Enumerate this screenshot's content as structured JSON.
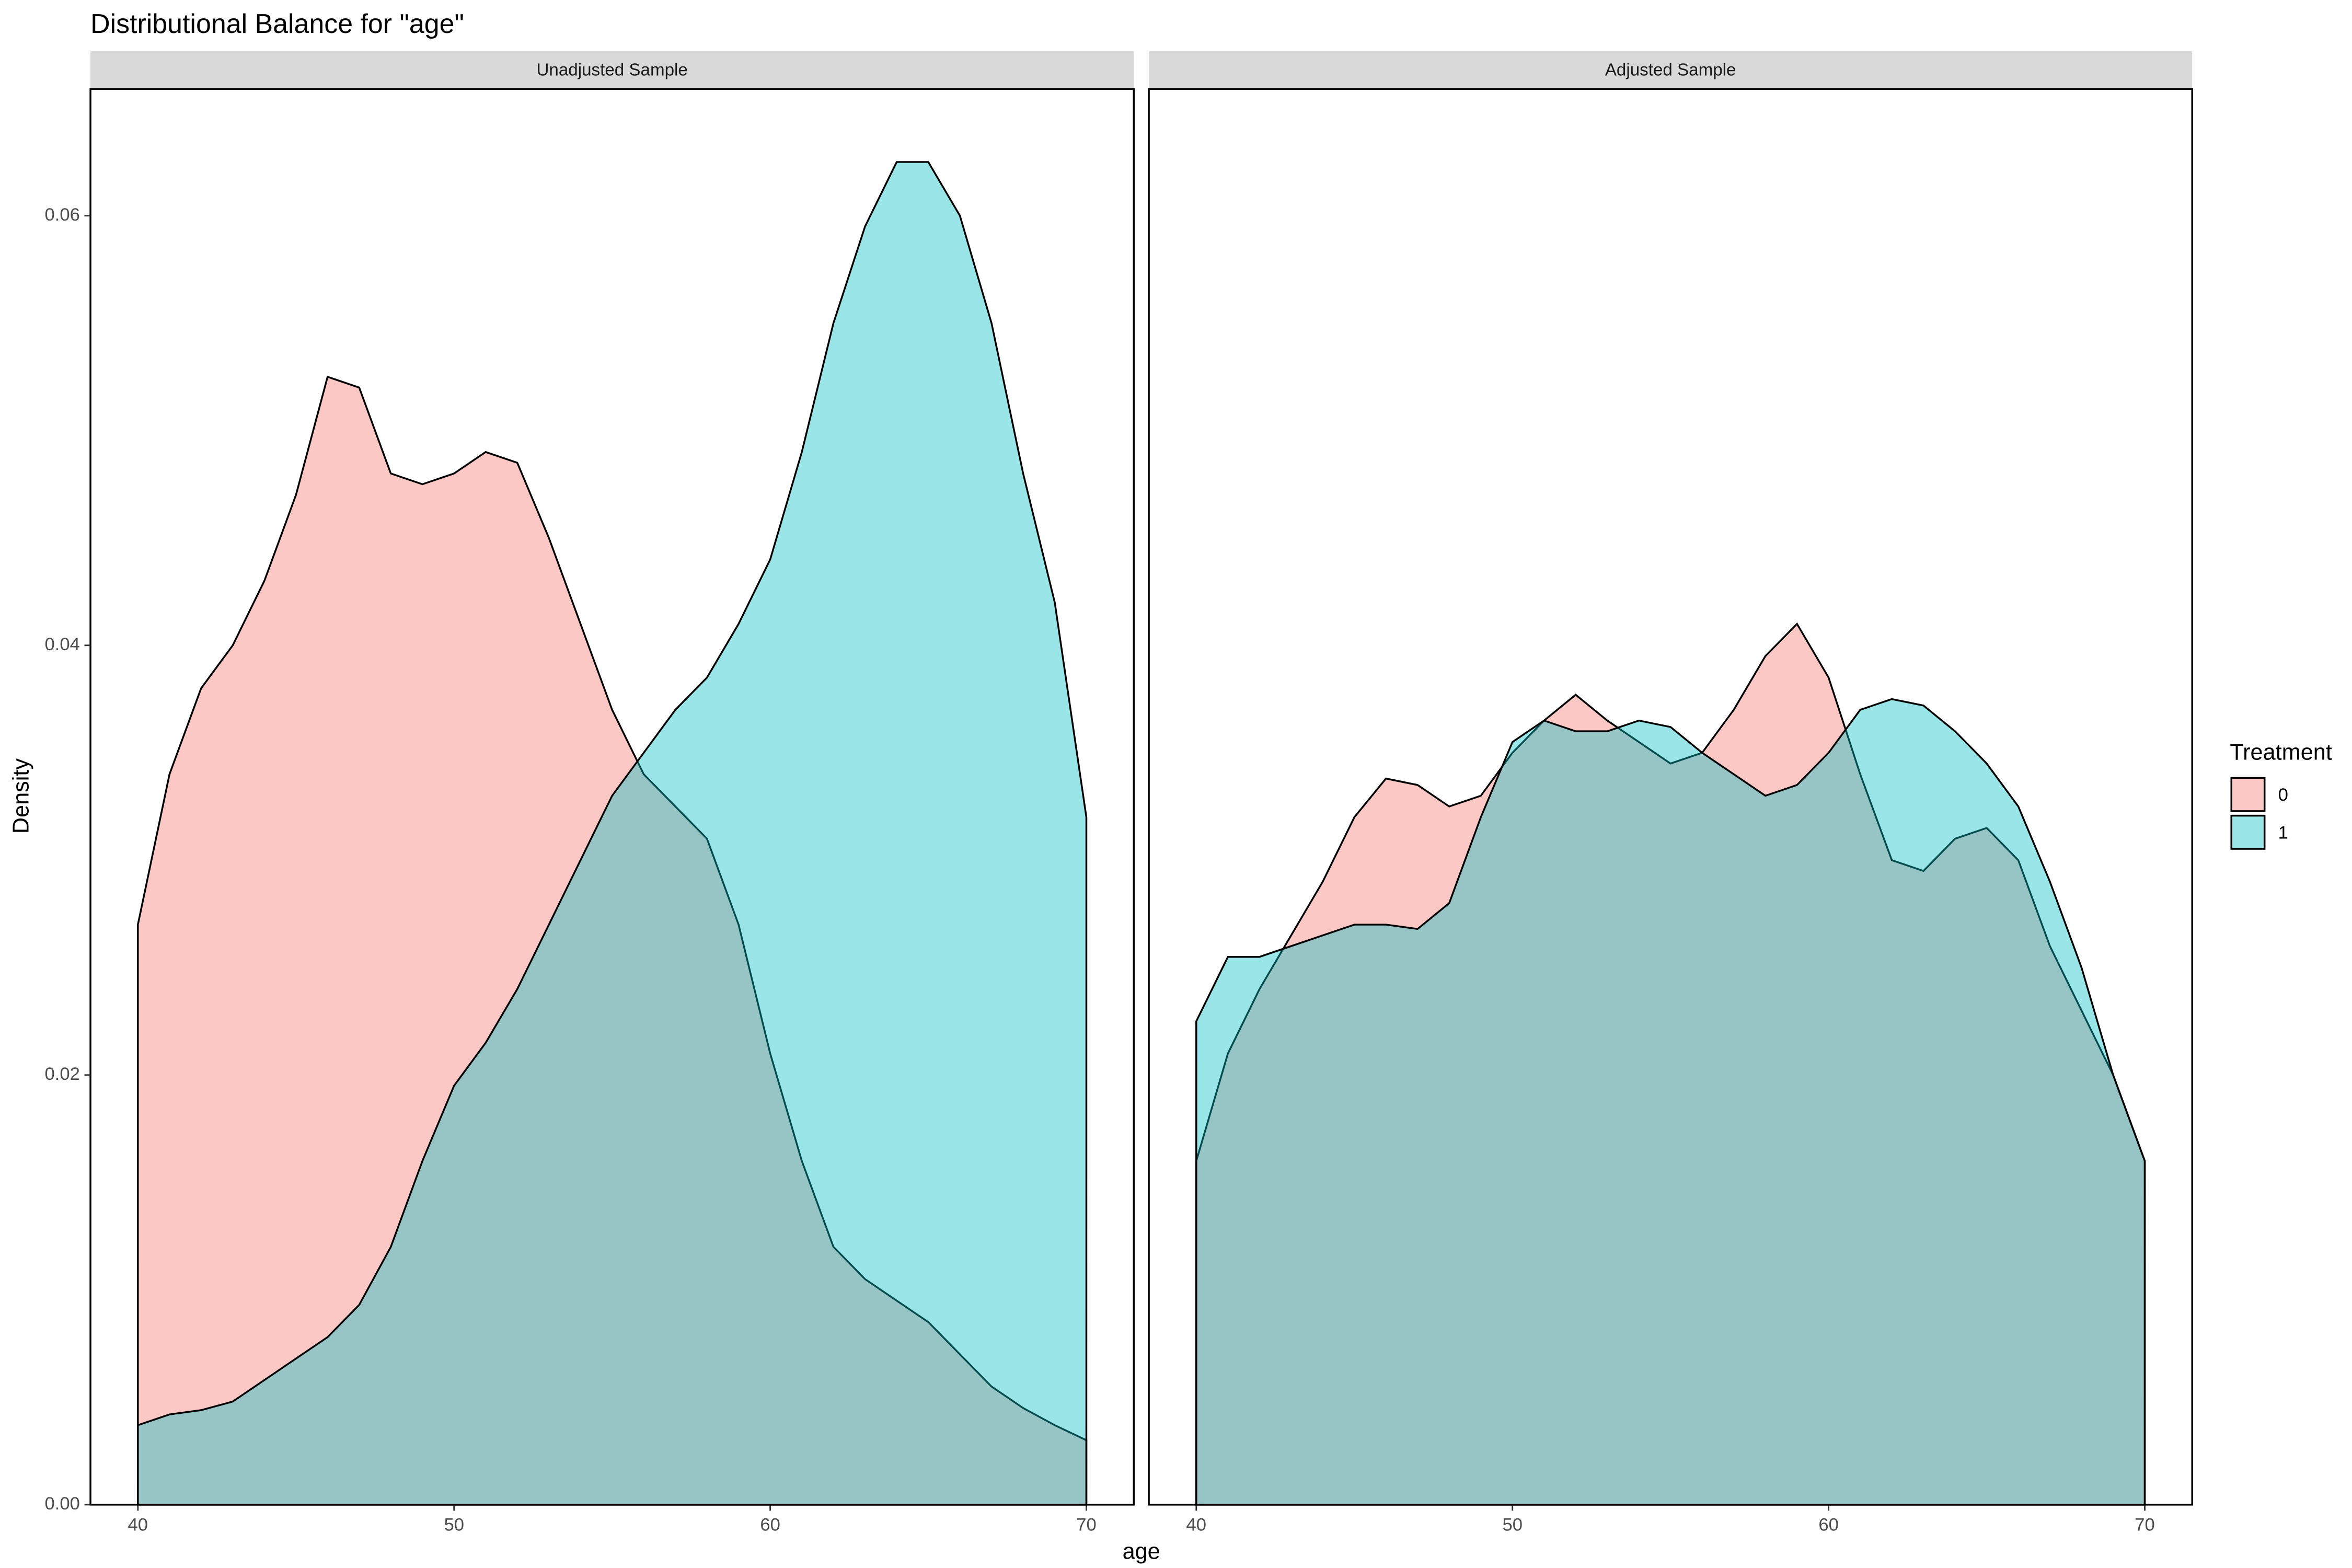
{
  "chart_data": {
    "type": "area",
    "title": "Distributional Balance for \"age\"",
    "x_label": "age",
    "y_label": "Density",
    "legend_title": "Treatment",
    "xlim": [
      38.5,
      71.5
    ],
    "ylim": [
      0,
      0.0659
    ],
    "xticks": [
      40,
      50,
      60,
      70
    ],
    "yticks": [
      {
        "value": 0,
        "label": "0.00"
      },
      0.02,
      0.04,
      0.06
    ],
    "x": [
      40,
      41,
      42,
      43,
      44,
      45,
      46,
      47,
      48,
      49,
      50,
      51,
      52,
      53,
      54,
      55,
      56,
      57,
      58,
      59,
      60,
      61,
      62,
      63,
      64,
      65,
      66,
      67,
      68,
      69,
      70
    ],
    "panels": [
      {
        "title": "Unadjusted Sample",
        "series": [
          {
            "name": "0",
            "color": "#F8766D",
            "values": [
              0.027,
              0.034,
              0.038,
              0.04,
              0.043,
              0.047,
              0.0525,
              0.052,
              0.048,
              0.0475,
              0.048,
              0.049,
              0.0485,
              0.045,
              0.041,
              0.037,
              0.034,
              0.0325,
              0.031,
              0.027,
              0.021,
              0.016,
              0.012,
              0.0105,
              0.0095,
              0.0085,
              0.007,
              0.0055,
              0.0045,
              0.0037,
              0.003
            ]
          },
          {
            "name": "1",
            "color": "#00BFC4",
            "values": [
              0.0037,
              0.0042,
              0.0044,
              0.0048,
              0.0058,
              0.0068,
              0.0078,
              0.0093,
              0.012,
              0.016,
              0.0195,
              0.0215,
              0.024,
              0.027,
              0.03,
              0.033,
              0.035,
              0.037,
              0.0385,
              0.041,
              0.044,
              0.049,
              0.055,
              0.0595,
              0.0625,
              0.0625,
              0.06,
              0.055,
              0.048,
              0.042,
              0.032
            ]
          }
        ]
      },
      {
        "title": "Adjusted Sample",
        "series": [
          {
            "name": "0",
            "color": "#F8766D",
            "values": [
              0.016,
              0.021,
              0.024,
              0.0265,
              0.029,
              0.032,
              0.0338,
              0.0335,
              0.0325,
              0.033,
              0.035,
              0.0365,
              0.0377,
              0.0365,
              0.0355,
              0.0345,
              0.035,
              0.037,
              0.0395,
              0.041,
              0.0385,
              0.034,
              0.03,
              0.0295,
              0.031,
              0.0315,
              0.03,
              0.026,
              0.023,
              0.02,
              0.016
            ]
          },
          {
            "name": "1",
            "color": "#00BFC4",
            "values": [
              0.0225,
              0.0255,
              0.0255,
              0.026,
              0.0265,
              0.027,
              0.027,
              0.0268,
              0.028,
              0.032,
              0.0355,
              0.0365,
              0.036,
              0.036,
              0.0365,
              0.0362,
              0.035,
              0.034,
              0.033,
              0.0335,
              0.035,
              0.037,
              0.0375,
              0.0372,
              0.036,
              0.0345,
              0.0325,
              0.029,
              0.025,
              0.02,
              0.016
            ]
          }
        ]
      }
    ]
  }
}
